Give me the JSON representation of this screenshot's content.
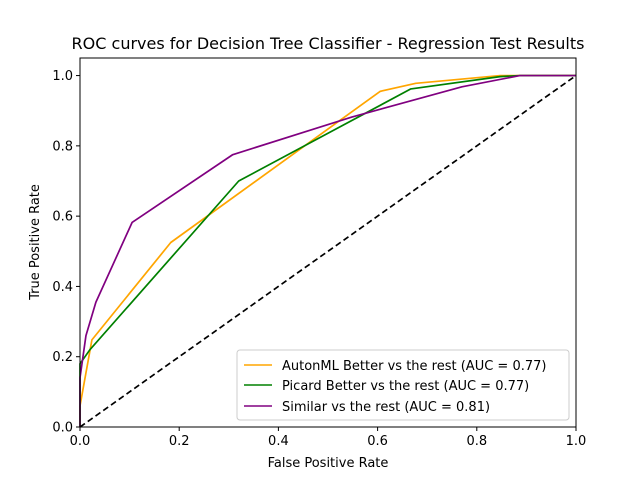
{
  "chart_data": {
    "type": "line",
    "title": "ROC curves for Decision Tree Classifier - Regression Test Results",
    "xlabel": "False Positive Rate",
    "ylabel": "True Positive Rate",
    "xlim": [
      0.0,
      1.0
    ],
    "ylim": [
      0.0,
      1.05
    ],
    "grid": false,
    "legend_position": "lower-right",
    "x_ticks": [
      "0.0",
      "0.2",
      "0.4",
      "0.6",
      "0.8",
      "1.0"
    ],
    "y_ticks": [
      "0.0",
      "0.2",
      "0.4",
      "0.6",
      "0.8",
      "1.0"
    ],
    "series": [
      {
        "name": "AutonML Better vs the rest (AUC = 0.77)",
        "color": "#ffa500",
        "style": "solid",
        "x": [
          0.0,
          0.0,
          0.024,
          0.183,
          0.605,
          0.677,
          0.847,
          0.887,
          1.0
        ],
        "y": [
          0.0,
          0.06,
          0.248,
          0.525,
          0.955,
          0.978,
          1.0,
          1.0,
          1.0
        ]
      },
      {
        "name": "Picard Better vs the rest (AUC = 0.77)",
        "color": "#008000",
        "style": "solid",
        "x": [
          0.0,
          0.0,
          0.02,
          0.32,
          0.667,
          0.847,
          0.887,
          1.0
        ],
        "y": [
          0.0,
          0.18,
          0.22,
          0.7,
          0.962,
          0.997,
          1.0,
          1.0
        ]
      },
      {
        "name": "Similar vs the rest (AUC = 0.81)",
        "color": "#800080",
        "style": "solid",
        "x": [
          0.0,
          0.0,
          0.012,
          0.032,
          0.105,
          0.308,
          0.548,
          0.77,
          0.887,
          1.0
        ],
        "y": [
          0.0,
          0.14,
          0.26,
          0.355,
          0.582,
          0.775,
          0.882,
          0.968,
          1.0,
          1.0
        ]
      },
      {
        "name": "chance diagonal",
        "color": "#000000",
        "style": "dashed",
        "x": [
          0.0,
          1.0
        ],
        "y": [
          0.0,
          1.0
        ]
      }
    ]
  }
}
